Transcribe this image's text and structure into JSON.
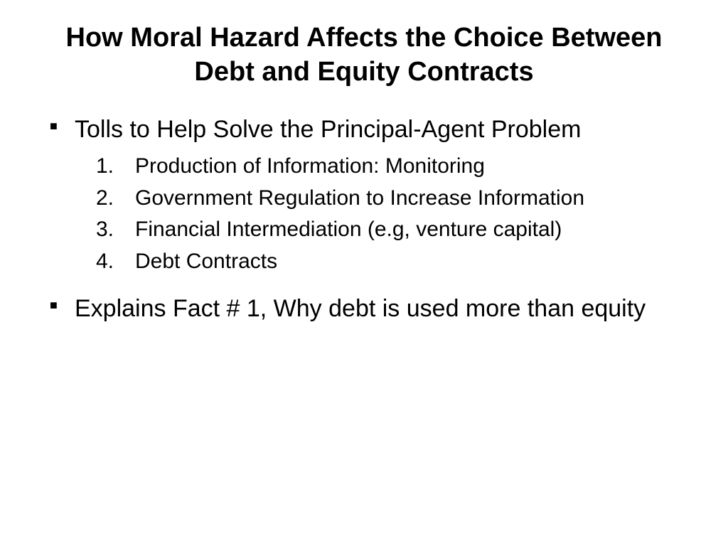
{
  "slide": {
    "title": "How Moral Hazard Affects the Choice Between Debt and Equity Contracts",
    "background_color": "#ffffff",
    "text_color": "#000000",
    "title_fontsize": 38,
    "title_fontweight": "bold",
    "body_fontsize": 34,
    "sublist_fontsize": 30,
    "bullets": [
      {
        "text": "Tolls to Help Solve the Principal-Agent Problem",
        "numbered_items": [
          {
            "num": "1.",
            "text": "Production of Information: Monitoring"
          },
          {
            "num": "2.",
            "text": "Government Regulation to Increase Information"
          },
          {
            "num": "3.",
            "text": "Financial Intermediation (e.g, venture capital)"
          },
          {
            "num": "4.",
            "text": "Debt Contracts"
          }
        ]
      },
      {
        "text": "Explains Fact # 1, Why debt is used more than equity"
      }
    ]
  }
}
